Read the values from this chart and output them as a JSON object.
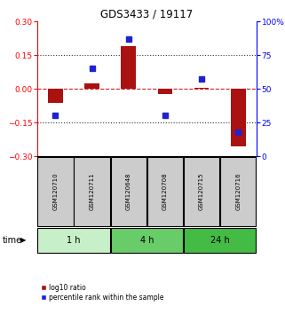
{
  "title": "GDS3433 / 19117",
  "samples": [
    "GSM120710",
    "GSM120711",
    "GSM120648",
    "GSM120708",
    "GSM120715",
    "GSM120716"
  ],
  "log10_ratio": [
    -0.062,
    0.022,
    0.19,
    -0.022,
    0.002,
    -0.255
  ],
  "percentile": [
    30,
    65,
    87,
    30,
    57,
    18
  ],
  "groups": [
    {
      "label": "1 h",
      "indices": [
        0,
        1
      ],
      "color": "#c8f0c8"
    },
    {
      "label": "4 h",
      "indices": [
        2,
        3
      ],
      "color": "#68cc68"
    },
    {
      "label": "24 h",
      "indices": [
        4,
        5
      ],
      "color": "#44bb44"
    }
  ],
  "ylim": [
    -0.3,
    0.3
  ],
  "y2lim": [
    0,
    100
  ],
  "bar_color": "#aa1111",
  "scatter_color": "#2222cc",
  "dotted_color": "#333333",
  "zero_line_color": "#cc2222",
  "background_color": "#ffffff",
  "header_bg": "#cccccc",
  "time_label": "time",
  "legend_bar": "log10 ratio",
  "legend_scatter": "percentile rank within the sample"
}
